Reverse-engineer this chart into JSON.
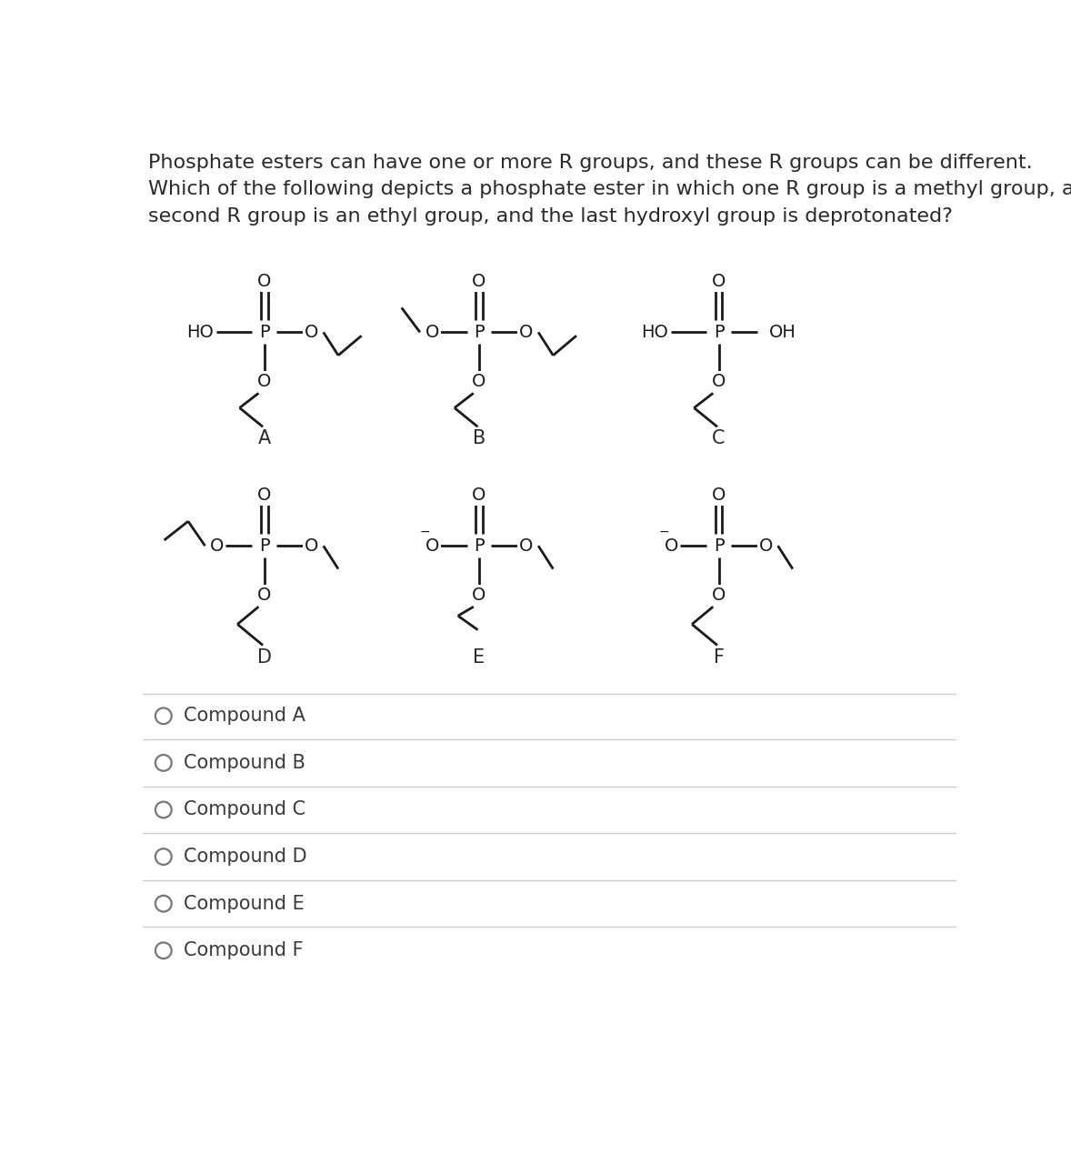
{
  "title_line1": "Phosphate esters can have one or more R groups, and these R groups can be different.",
  "title_line2": "Which of the following depicts a phosphate ester in which one R group is a methyl group, a",
  "title_line3": "second R group is an ethyl group, and the last hydroxyl group is deprotonated?",
  "compound_labels": [
    "A",
    "B",
    "C",
    "D",
    "E",
    "F"
  ],
  "choice_labels": [
    "Compound A",
    "Compound B",
    "Compound C",
    "Compound D",
    "Compound E",
    "Compound F"
  ],
  "bg_color": "#ffffff",
  "text_color": "#2a2a2a",
  "line_color": "#1a1a1a",
  "sep_line_color": "#cccccc",
  "font_size_title": 16,
  "font_size_label": 15,
  "font_size_atom": 14,
  "font_size_choice": 15
}
